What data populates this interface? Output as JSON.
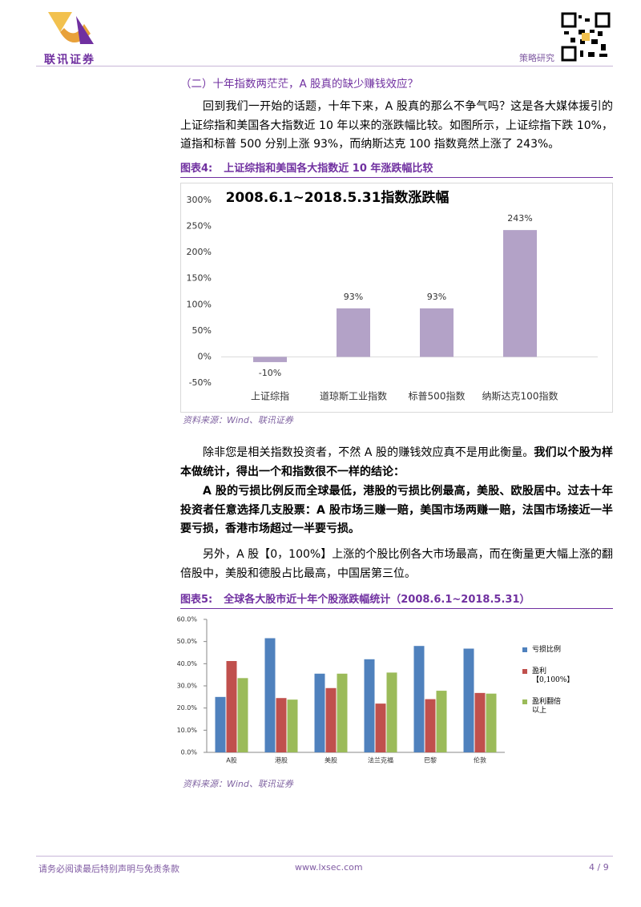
{
  "header": {
    "logo": "联讯证券",
    "section": "策略研究"
  },
  "heading": "（二）十年指数两茫茫，A 股真的缺少赚钱效应？",
  "paragraphs": [
    [
      {
        "text": "回到我们一开始的话题，十年下来，A 股真的那么不争气吗？这是各大媒体援引的上证综指和美国各大指数近 10 年以来的涨跌幅比较。如图所示，上证综指下跌 10%，道指和标普 500 分别上涨 93%，而纳斯达克 100 指数竟然上涨了 243%。",
        "bold": false
      }
    ],
    [
      {
        "text": "除非您是相关指数投资者，不然 A 股的赚钱效应真不是用此衡量。",
        "bold": false
      },
      {
        "text": "我们以个股为样本做统计，得出一个和指数很不一样的结论：",
        "bold": true
      }
    ],
    [
      {
        "text": "A 股的亏损比例反而全球最低，港股的亏损比例最高，美股、欧股居中。过去十年投资者任意选择几支股票：A 股市场三赚一赔，美国市场两赚一赔，法国市场接近一半要亏损，香港市场超过一半要亏损。",
        "bold": true
      }
    ],
    [
      {
        "text": "另外，A 股【0，100%】上涨的个股比例各大市场最高，而在衡量更大幅上涨的翻倍股中，美股和德股占比最高，中国居第三位。",
        "bold": false
      }
    ]
  ],
  "figures": [
    {
      "label": "图表4:",
      "title": "上证综指和美国各大指数近 10 年涨跌幅比较",
      "source": "资料来源：Wind、联讯证券"
    },
    {
      "label": "图表5:",
      "title": "全球各大股市近十年个股涨跌幅统计（2008.6.1~2018.5.31）",
      "source": "资料来源：Wind、联讯证券"
    }
  ],
  "chart_data": [
    {
      "type": "bar",
      "title": "2008.6.1~2018.5.31指数涨跌幅",
      "categories": [
        "上证综指",
        "道琼斯工业指数",
        "标普500指数",
        "纳斯达克100指数"
      ],
      "values": [
        -10,
        93,
        93,
        243
      ],
      "value_labels": [
        "-10%",
        "93%",
        "93%",
        "243%"
      ],
      "color": "#b3a2c7",
      "ylim": [
        -50,
        300
      ],
      "yticks": [
        {
          "value": -50,
          "label": "-50%"
        },
        {
          "value": 0,
          "label": "0%"
        },
        {
          "value": 50,
          "label": "50%"
        },
        {
          "value": 100,
          "label": "100%"
        },
        {
          "value": 150,
          "label": "150%"
        },
        {
          "value": 200,
          "label": "200%"
        },
        {
          "value": 250,
          "label": "250%"
        },
        {
          "value": 300,
          "label": "300%"
        }
      ]
    },
    {
      "type": "bar",
      "categories": [
        "A股",
        "港股",
        "美股",
        "法兰克福",
        "巴黎",
        "伦敦"
      ],
      "series": [
        {
          "name": "亏损比例",
          "color": "#4f81bd",
          "values": [
            25,
            51.5,
            35.5,
            42,
            48,
            46.8
          ]
        },
        {
          "name": "盈利【0,100%】",
          "color": "#c0504d",
          "values": [
            41.2,
            24.5,
            29,
            22,
            24,
            26.8
          ]
        },
        {
          "name": "盈利翻倍以上",
          "color": "#9bbb59",
          "values": [
            33.5,
            23.8,
            35.5,
            36,
            27.8,
            26.5
          ]
        }
      ],
      "ylim": [
        0,
        60
      ],
      "yticks": [
        {
          "value": 0,
          "label": "0.0%"
        },
        {
          "value": 10,
          "label": "10.0%"
        },
        {
          "value": 20,
          "label": "20.0%"
        },
        {
          "value": 30,
          "label": "30.0%"
        },
        {
          "value": 40,
          "label": "40.0%"
        },
        {
          "value": 50,
          "label": "50.0%"
        },
        {
          "value": 60,
          "label": "60.0%"
        }
      ],
      "legend": "right"
    }
  ]
}
